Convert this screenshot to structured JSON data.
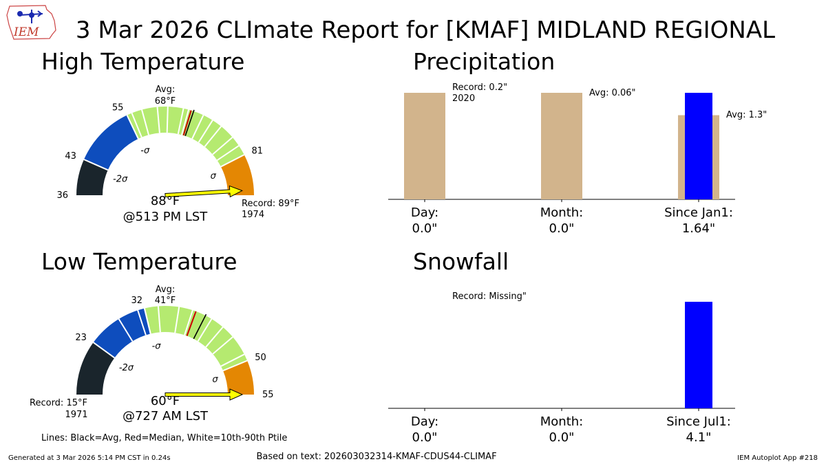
{
  "title": "3 Mar 2026 CLImate Report for [KMAF] MIDLAND REGIONAL",
  "logo": {
    "text": "IEM",
    "icon": "iowa-map-weather-station-logo"
  },
  "footer": {
    "generated": "Generated at 3 Mar 2026 5:14 PM CST in 0.24s",
    "based_on": "Based on text: 202603032314-KMAF-CDUS44-CLIMAF",
    "app": "IEM Autoplot App #218",
    "lines_note": "Lines: Black=Avg, Red=Median, White=10th-90th Ptile"
  },
  "colors": {
    "below_record_band": "#1a252c",
    "below_sigma_band": "#0e4dbd",
    "normal_band": "#b5ea70",
    "above_sigma_band": "#e48703",
    "avg_line": "#000000",
    "median_line": "#cc0000",
    "precip_climo_bar": "#d2b48c",
    "precip_obs_bar": "#0000ff",
    "arrow_fill": "#ffff00"
  },
  "chart_data": [
    {
      "type": "gauge",
      "panel": "high",
      "title": "High Temperature",
      "scale_min": 36,
      "scale_max": 89,
      "band_edges": [
        36,
        43,
        55,
        81,
        89
      ],
      "tick_labels": [
        "36",
        "43",
        "55",
        "81"
      ],
      "sigma_labels": [
        "-2σ",
        "-σ",
        "σ"
      ],
      "sigma_values": [
        43,
        55,
        81
      ],
      "avg_value": 68,
      "median_value": 67.5,
      "percentile_lines": [
        56,
        58,
        61,
        63,
        66,
        67,
        70,
        72,
        74,
        77,
        79
      ],
      "avg_label": "Avg:",
      "avg_value_label": "68°F",
      "observed_value": 88,
      "observed_label": "88°F",
      "observed_time": "@513 PM LST",
      "record_label": "Record: 89°F",
      "record_year": "1974"
    },
    {
      "type": "gauge",
      "panel": "low",
      "title": "Low Temperature",
      "scale_min": 15,
      "scale_max": 55,
      "band_edges": [
        15,
        23,
        32,
        50,
        55
      ],
      "tick_labels": [
        "23",
        "32",
        "50",
        "55"
      ],
      "sigma_labels": [
        "-2σ",
        "-σ",
        "σ"
      ],
      "sigma_values": [
        23,
        32,
        50
      ],
      "avg_value": 41,
      "median_value": 39.5,
      "percentile_lines": [
        28,
        31,
        32,
        34,
        37,
        39,
        42,
        44,
        46,
        49
      ],
      "avg_label": "Avg:",
      "avg_value_label": "41°F",
      "observed_value": 60,
      "observed_label": "60°F",
      "observed_time": "@727 AM LST",
      "record_label": "Record: 15°F",
      "record_year": "1971"
    },
    {
      "type": "bar",
      "panel": "precip",
      "title": "Precipitation",
      "categories": [
        {
          "name": "Day:",
          "value_label": "0.0\""
        },
        {
          "name": "Month:",
          "value_label": "0.0\""
        },
        {
          "name": "Since Jan1:",
          "value_label": "1.64\""
        }
      ],
      "climo_fraction": [
        1.0,
        1.0,
        0.79
      ],
      "observed_fraction": [
        0.0,
        0.0,
        1.0
      ],
      "annotations": [
        {
          "text": "Record: 0.2\"",
          "sub": "2020"
        },
        {
          "text": "Avg: 0.06\"",
          "sub": ""
        },
        {
          "text": "Avg: 1.3\"",
          "sub": ""
        }
      ]
    },
    {
      "type": "bar",
      "panel": "snow",
      "title": "Snowfall",
      "categories": [
        {
          "name": "Day:",
          "value_label": "0.0\""
        },
        {
          "name": "Month:",
          "value_label": "0.0\""
        },
        {
          "name": "Since Jul1:",
          "value_label": "4.1\""
        }
      ],
      "observed_fraction": [
        0.0,
        0.0,
        1.0
      ],
      "annotations": [
        {
          "text": "Record: Missing\""
        }
      ]
    }
  ]
}
